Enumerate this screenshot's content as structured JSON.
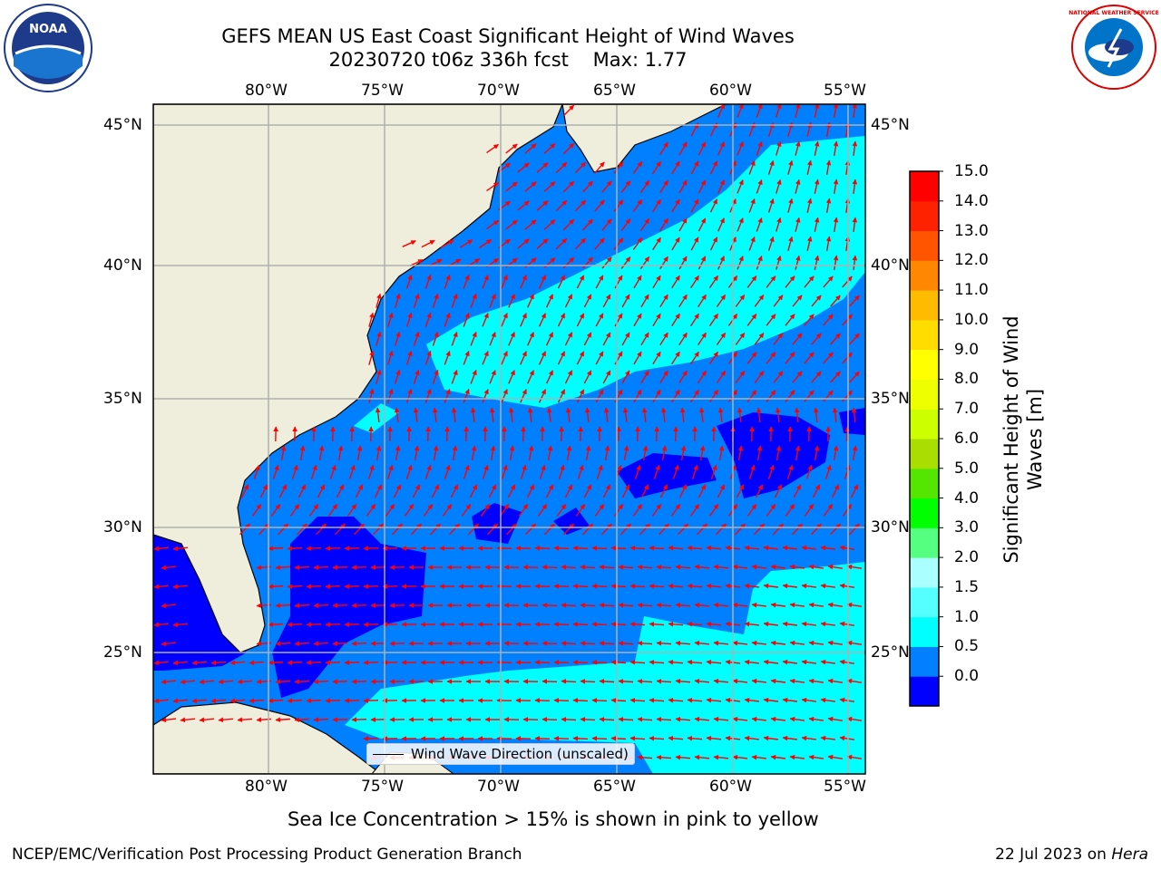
{
  "header": {
    "title_line1": "GEFS MEAN US East Coast Significant Height of Wind Waves",
    "title_line2": "20230720 t06z 336h fcst",
    "max_label": "Max: 1.77"
  },
  "logos": {
    "left_text": "NOAA",
    "right_text": "NATIONAL WEATHER SERVICE"
  },
  "map": {
    "lon_labels": [
      "80°W",
      "75°W",
      "70°W",
      "65°W",
      "60°W",
      "55°W"
    ],
    "lat_labels": [
      "45°N",
      "40°N",
      "35°N",
      "30°N",
      "25°N"
    ],
    "legend_label": "Wind Wave Direction (unscaled)",
    "colors": {
      "land": "#efeedd",
      "band_0_0_5": "#0000ff",
      "band_0_5_1_0": "#0080ff",
      "band_1_0_1_5": "#00ffff",
      "arrow": "#ff0000",
      "grid": "#b0b0b0"
    }
  },
  "colorbar": {
    "title": "Significant Height of Wind Waves [m]",
    "tick_labels": [
      "15.0",
      "14.0",
      "13.0",
      "12.0",
      "11.0",
      "10.0",
      "9.0",
      "8.0",
      "7.0",
      "6.0",
      "5.0",
      "4.0",
      "3.0",
      "2.0",
      "1.5",
      "1.0",
      "0.5",
      "0.0"
    ],
    "colors_bottom_to_top": [
      "#0000ff",
      "#0080ff",
      "#00ffff",
      "#55ffff",
      "#aaffff",
      "#55ff7f",
      "#00ff00",
      "#55e600",
      "#aadd00",
      "#ccff00",
      "#eeff00",
      "#ffff00",
      "#ffdd00",
      "#ffbb00",
      "#ff8800",
      "#ff5500",
      "#ff2200",
      "#ff0000"
    ]
  },
  "footer": {
    "sea_ice_note": "Sea Ice Concentration > 15% is shown in pink to yellow",
    "branch": "NCEP/EMC/Verification Post Processing Product Generation Branch",
    "date_text": "22 Jul 2023 on ",
    "host": "Hera"
  }
}
